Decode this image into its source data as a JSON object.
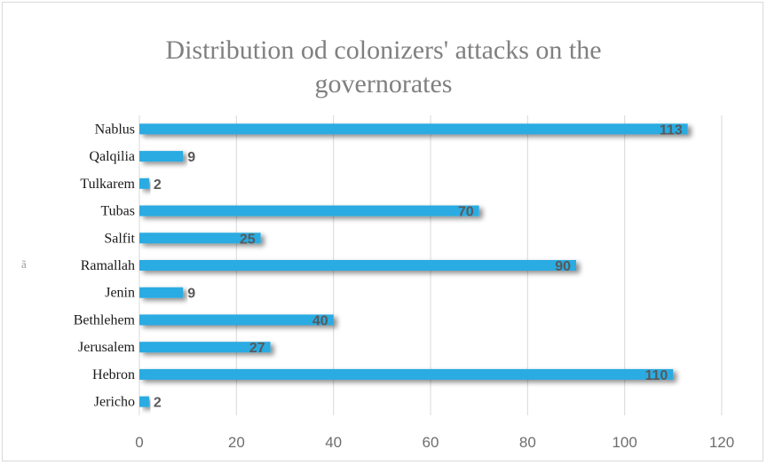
{
  "chart_data": {
    "type": "bar",
    "orientation": "horizontal",
    "title": "Distribution od colonizers' attacks on the\ngovernorates",
    "categories": [
      "Jericho",
      "Hebron",
      "Jerusalem",
      "Bethlehem",
      "Jenin",
      "Ramallah",
      "Salfit",
      "Tubas",
      "Tulkarem",
      "Qalqilia",
      "Nablus"
    ],
    "values": [
      2,
      110,
      27,
      40,
      9,
      90,
      25,
      70,
      2,
      9,
      113
    ],
    "xlim": [
      0,
      120
    ],
    "xticks": [
      0,
      20,
      40,
      60,
      80,
      100,
      120
    ],
    "grid": true,
    "legend": "none",
    "bar_color": "#29abe2",
    "stray_glyph": "ã"
  }
}
